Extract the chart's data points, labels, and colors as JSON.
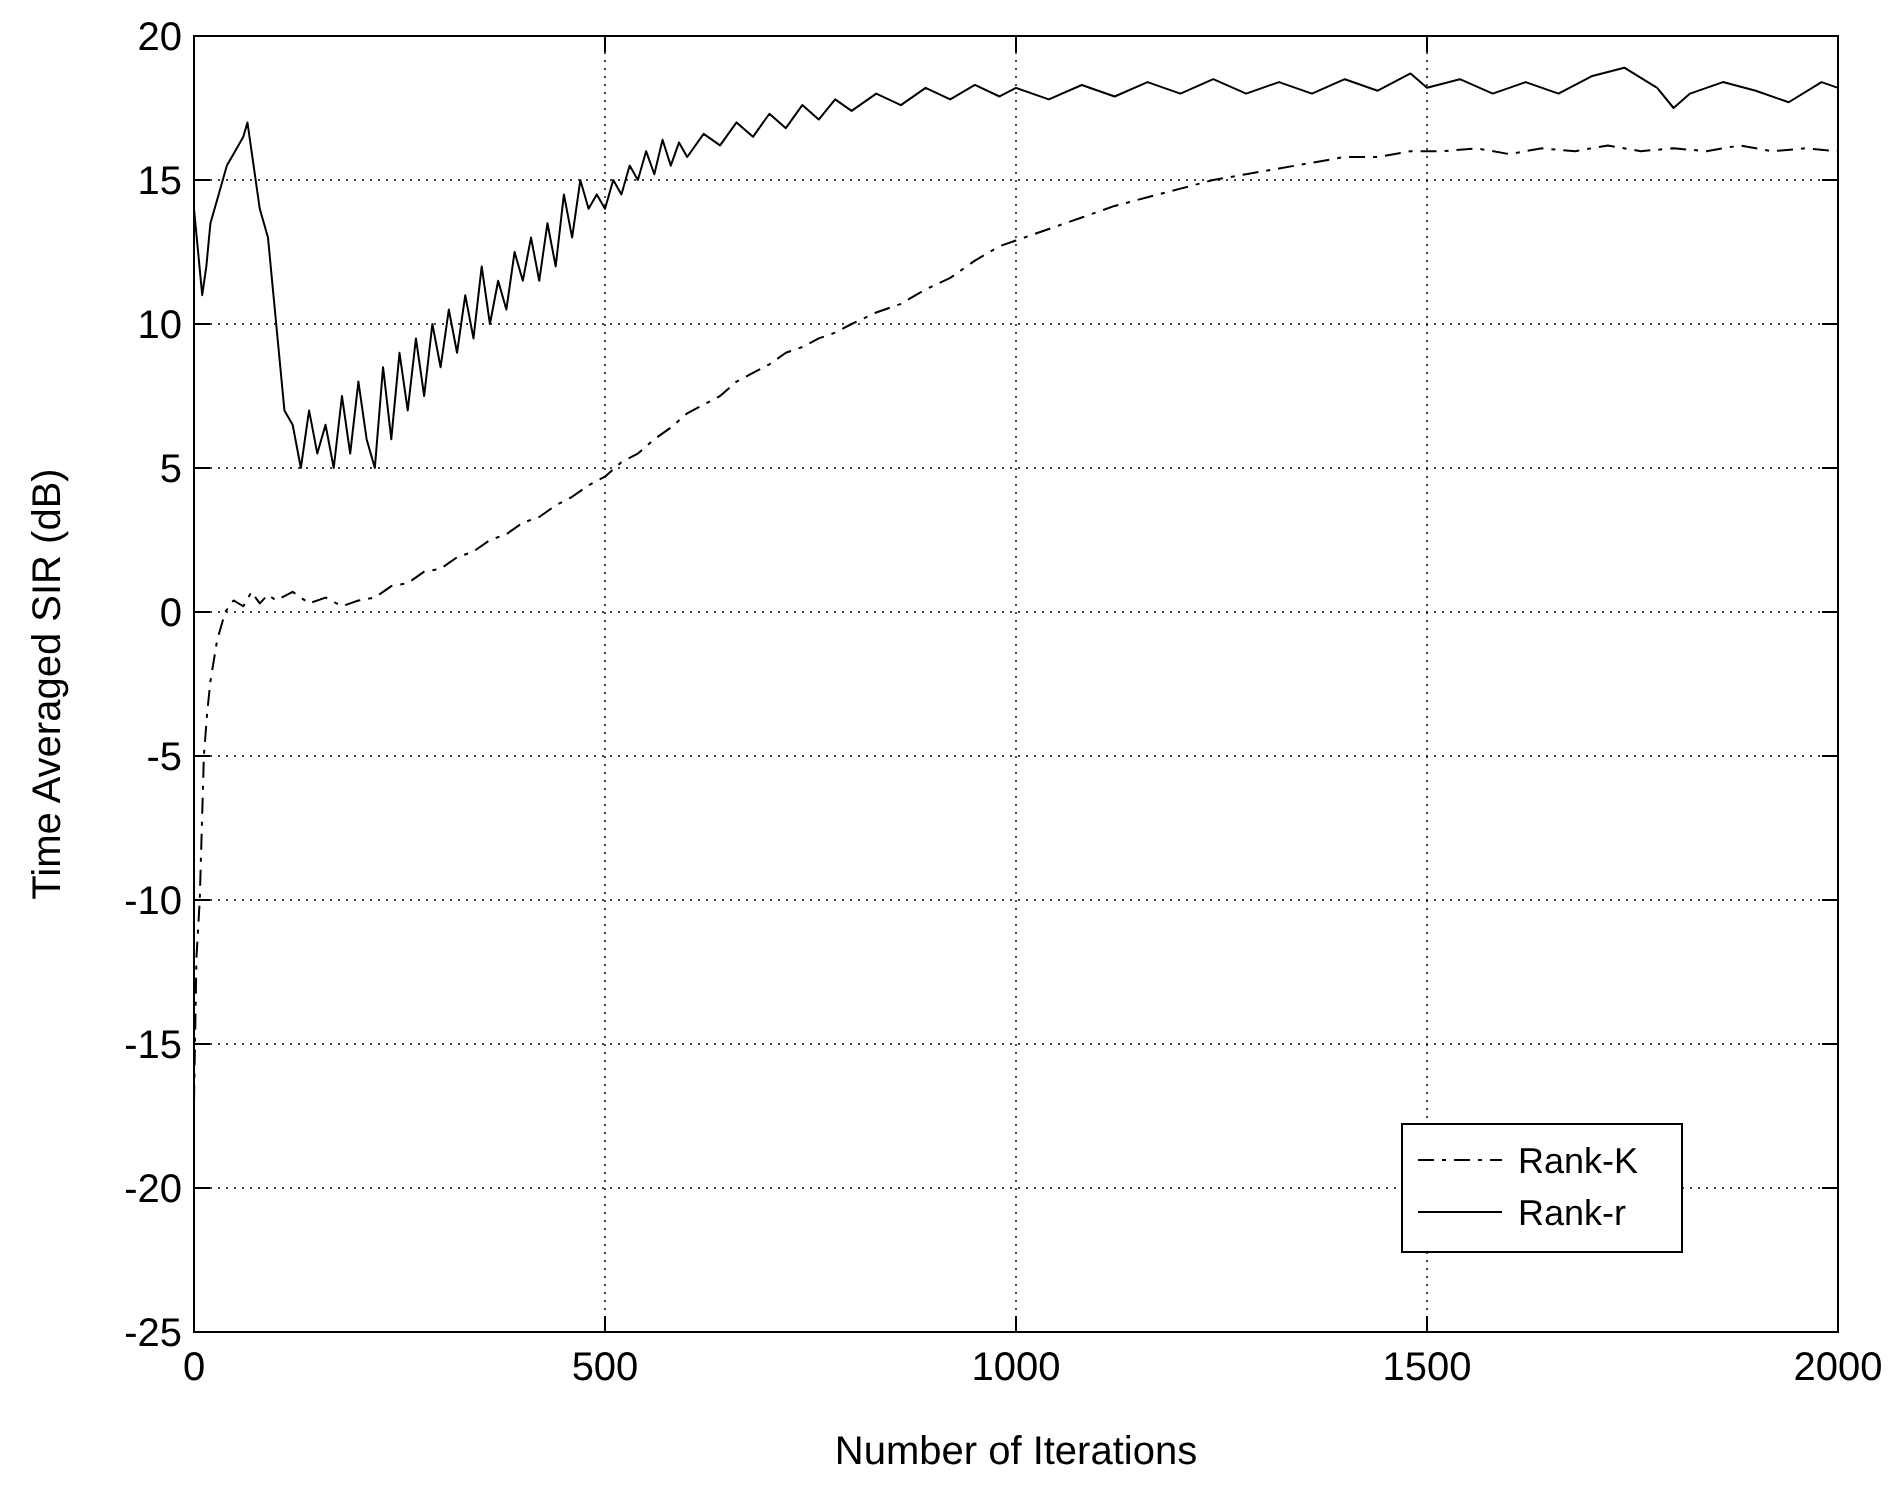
{
  "chart_data": {
    "type": "line",
    "xlabel": "Number of Iterations",
    "ylabel": "Time Averaged SIR (dB)",
    "xlim": [
      0,
      2000
    ],
    "xticks": [
      0,
      500,
      1000,
      1500,
      2000
    ],
    "ylim": [
      -25,
      20
    ],
    "yticks": [
      -25,
      -20,
      -15,
      -10,
      -5,
      0,
      5,
      10,
      15,
      20
    ],
    "grid": true,
    "legend": "bottom right",
    "marker": "none",
    "series": [
      {
        "name": "Rank-K",
        "color": "#000000",
        "line_style": "dashed",
        "x": [
          0,
          3,
          7,
          12,
          16,
          20,
          28,
          38,
          48,
          60,
          70,
          80,
          90,
          100,
          120,
          140,
          160,
          180,
          200,
          220,
          240,
          260,
          280,
          300,
          320,
          340,
          360,
          380,
          400,
          420,
          440,
          460,
          480,
          500,
          520,
          540,
          560,
          580,
          600,
          620,
          640,
          660,
          680,
          700,
          720,
          740,
          760,
          780,
          800,
          830,
          860,
          890,
          920,
          950,
          980,
          1000,
          1040,
          1080,
          1120,
          1160,
          1200,
          1240,
          1280,
          1320,
          1360,
          1400,
          1440,
          1480,
          1520,
          1560,
          1600,
          1640,
          1680,
          1720,
          1760,
          1800,
          1840,
          1880,
          1920,
          1960,
          2000
        ],
        "values": [
          -17,
          -12,
          -10,
          -5,
          -3.5,
          -2.4,
          -1,
          0,
          0.4,
          0.2,
          0.7,
          0.3,
          0.6,
          0.4,
          0.7,
          0.3,
          0.5,
          0.2,
          0.4,
          0.5,
          0.9,
          1,
          1.4,
          1.5,
          1.9,
          2.1,
          2.5,
          2.7,
          3.1,
          3.3,
          3.7,
          4,
          4.4,
          4.7,
          5.2,
          5.5,
          6,
          6.4,
          6.9,
          7.2,
          7.5,
          8,
          8.3,
          8.6,
          9,
          9.2,
          9.5,
          9.7,
          10,
          10.4,
          10.7,
          11.2,
          11.6,
          12.2,
          12.7,
          12.9,
          13.3,
          13.7,
          14.1,
          14.4,
          14.7,
          15,
          15.2,
          15.4,
          15.6,
          15.8,
          15.8,
          16,
          16,
          16.1,
          15.9,
          16.1,
          16,
          16.2,
          16,
          16.1,
          16,
          16.2,
          16,
          16.1,
          16
        ]
      },
      {
        "name": "Rank-r",
        "color": "#000000",
        "line_style": "solid",
        "x": [
          0,
          5,
          10,
          15,
          20,
          30,
          40,
          50,
          60,
          65,
          70,
          80,
          90,
          95,
          100,
          110,
          120,
          130,
          140,
          150,
          160,
          170,
          180,
          190,
          200,
          210,
          220,
          230,
          240,
          250,
          260,
          270,
          280,
          290,
          300,
          310,
          320,
          330,
          340,
          350,
          360,
          370,
          380,
          390,
          400,
          410,
          420,
          430,
          440,
          450,
          460,
          470,
          480,
          490,
          500,
          510,
          520,
          530,
          540,
          550,
          560,
          570,
          580,
          590,
          600,
          620,
          640,
          660,
          680,
          700,
          720,
          740,
          760,
          780,
          800,
          830,
          860,
          890,
          920,
          950,
          980,
          1000,
          1040,
          1080,
          1120,
          1160,
          1200,
          1240,
          1280,
          1320,
          1360,
          1400,
          1440,
          1480,
          1500,
          1540,
          1580,
          1620,
          1660,
          1700,
          1740,
          1780,
          1800,
          1820,
          1860,
          1900,
          1940,
          1980,
          2000
        ],
        "values": [
          14,
          12.5,
          11,
          12,
          13.5,
          14.5,
          15.5,
          16,
          16.5,
          17,
          16,
          14,
          13,
          11.5,
          10,
          7,
          6.5,
          5,
          7,
          5.5,
          6.5,
          5,
          7.5,
          5.5,
          8,
          6,
          5,
          8.5,
          6,
          9,
          7,
          9.5,
          7.5,
          10,
          8.5,
          10.5,
          9,
          11,
          9.5,
          12,
          10,
          11.5,
          10.5,
          12.5,
          11.5,
          13,
          11.5,
          13.5,
          12,
          14.5,
          13,
          15,
          14,
          14.5,
          14,
          15,
          14.5,
          15.5,
          15,
          16,
          15.2,
          16.4,
          15.5,
          16.3,
          15.8,
          16.6,
          16.2,
          17,
          16.5,
          17.3,
          16.8,
          17.6,
          17.1,
          17.8,
          17.4,
          18,
          17.6,
          18.2,
          17.8,
          18.3,
          17.9,
          18.2,
          17.8,
          18.3,
          17.9,
          18.4,
          18,
          18.5,
          18,
          18.4,
          18,
          18.5,
          18.1,
          18.7,
          18.2,
          18.5,
          18,
          18.4,
          18,
          18.6,
          18.9,
          18.2,
          17.5,
          18,
          18.4,
          18.1,
          17.7,
          18.4,
          18.2
        ]
      }
    ]
  }
}
